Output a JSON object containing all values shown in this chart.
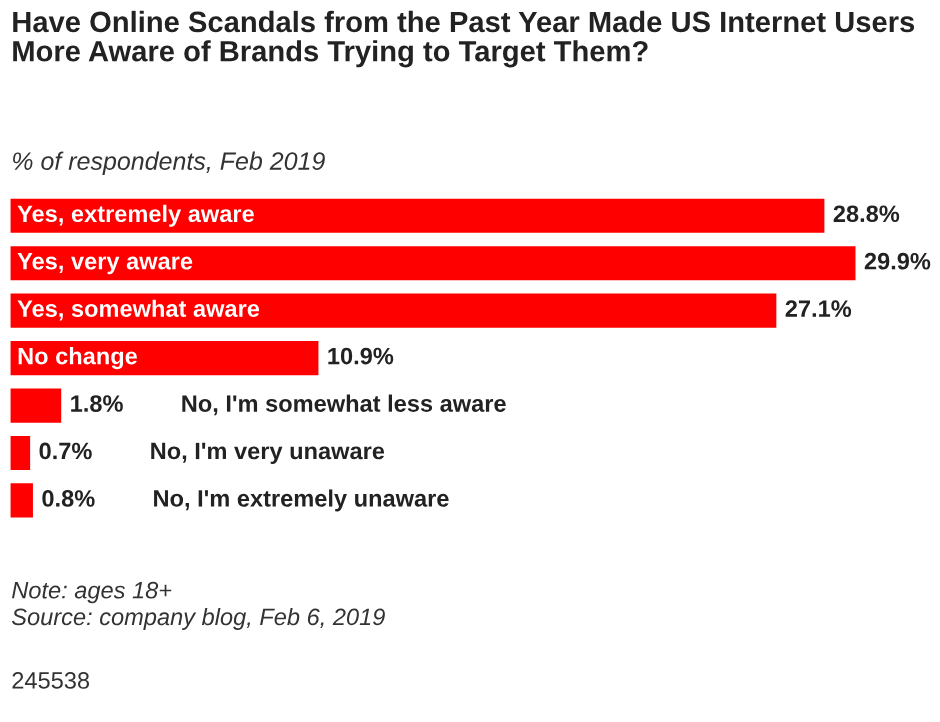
{
  "chart_data": {
    "type": "bar",
    "orientation": "horizontal",
    "title": "Have Online Scandals from the Past Year Made US Internet Users More Aware of Brands Trying to Target Them?",
    "subtitle": "% of respondents, Feb 2019",
    "categories": [
      "Yes, extremely aware",
      "Yes, very aware",
      "Yes, somewhat aware",
      "No change",
      "No, I'm somewhat less aware",
      "No, I'm very unaware",
      "No, I'm extremely unaware"
    ],
    "values": [
      28.8,
      29.9,
      27.1,
      10.9,
      1.8,
      0.7,
      0.8
    ],
    "color": "#ff0000",
    "value_labels": [
      "28.8%",
      "29.9%",
      "27.1%",
      "10.9%",
      "1.8%",
      "0.7%",
      "0.8%"
    ],
    "annotations": [
      "Note: ages 18+",
      "Source: company blog, Feb 6, 2019",
      "245538"
    ]
  }
}
